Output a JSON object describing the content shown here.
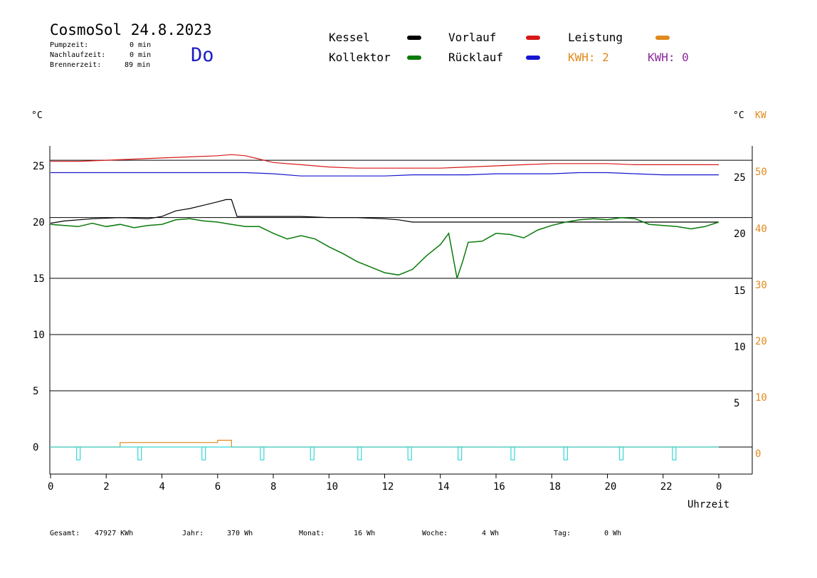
{
  "header": {
    "title": "CosmoSol 24.8.2023",
    "day": "Do",
    "stats": [
      {
        "label": "Pumpzeit:",
        "value": "0 min"
      },
      {
        "label": "Nachlaufzeit:",
        "value": "0 min"
      },
      {
        "label": "Brennerzeit:",
        "value": "89 min"
      }
    ]
  },
  "legend": {
    "kessel": "Kessel",
    "kollektor": "Kollektor",
    "vorlauf": "Vorlauf",
    "ruecklauf": "Rücklauf",
    "leistung": "Leistung",
    "kwh1": "KWH: 2",
    "kwh2": "KWH: 0"
  },
  "colors": {
    "kessel": "#000000",
    "kollektor": "#0a7a0a",
    "vorlauf": "#d81818",
    "ruecklauf": "#1616d0",
    "leistung": "#e08a1e",
    "pump": "#38d6d6",
    "kwh_purple": "#8b2a9a"
  },
  "axes": {
    "left_unit": "°C",
    "right_unit": "°C",
    "right_unit2": "KW",
    "xlabel": "Uhrzeit"
  },
  "footer": {
    "gesamt_label": "Gesamt:",
    "gesamt_value": "47927 KWh",
    "jahr_label": "Jahr:",
    "jahr_value": "370 Wh",
    "monat_label": "Monat:",
    "monat_value": "16 Wh",
    "woche_label": "Woche:",
    "woche_value": "4 Wh",
    "tag_label": "Tag:",
    "tag_value": "0 Wh"
  },
  "chart_data": {
    "type": "line",
    "title": "CosmoSol 24.8.2023",
    "xlabel": "Uhrzeit",
    "ylabel": "°C",
    "x_ticks": [
      "0",
      "2",
      "4",
      "6",
      "8",
      "10",
      "12",
      "14",
      "16",
      "18",
      "20",
      "22",
      "0"
    ],
    "xlim": [
      0,
      24
    ],
    "ylim": [
      -2.5,
      27.5
    ],
    "y_ticks_left": [
      25,
      20,
      15,
      10,
      5,
      0
    ],
    "y_ticks_right_temp": [
      25,
      20,
      15,
      10,
      5
    ],
    "y_ticks_right_kw": [
      50,
      40,
      30,
      20,
      10,
      0
    ],
    "grid": true,
    "series": [
      {
        "name": "Vorlauf",
        "color": "#d81818",
        "x": [
          0,
          1,
          2,
          3,
          4,
          5,
          6,
          6.5,
          7,
          7.5,
          8,
          9,
          10,
          11,
          12,
          13,
          14,
          15,
          16,
          17,
          18,
          19,
          20,
          21,
          22,
          23,
          24
        ],
        "y": [
          25.4,
          25.4,
          25.5,
          25.6,
          25.7,
          25.8,
          25.9,
          26.0,
          25.9,
          25.6,
          25.3,
          25.1,
          24.9,
          24.8,
          24.8,
          24.8,
          24.8,
          24.9,
          25.0,
          25.1,
          25.2,
          25.2,
          25.2,
          25.1,
          25.1,
          25.1,
          25.1
        ]
      },
      {
        "name": "Rücklauf",
        "color": "#1616d0",
        "x": [
          0,
          2,
          4,
          6,
          7,
          8,
          9,
          10,
          11,
          12,
          13,
          14,
          15,
          16,
          17,
          18,
          19,
          20,
          21,
          22,
          23,
          24
        ],
        "y": [
          24.4,
          24.4,
          24.4,
          24.4,
          24.4,
          24.3,
          24.1,
          24.1,
          24.1,
          24.1,
          24.2,
          24.2,
          24.2,
          24.3,
          24.3,
          24.3,
          24.4,
          24.4,
          24.3,
          24.2,
          24.2,
          24.2
        ]
      },
      {
        "name": "Kessel",
        "color": "#000000",
        "x": [
          0,
          0.5,
          1.5,
          2.5,
          3.5,
          4.0,
          4.5,
          5.0,
          5.5,
          6.0,
          6.3,
          6.5,
          6.7,
          7.5,
          8,
          9,
          10,
          11,
          12,
          12.5,
          13,
          14,
          16,
          18,
          20,
          22,
          24
        ],
        "y": [
          19.9,
          20.1,
          20.3,
          20.4,
          20.3,
          20.5,
          21.0,
          21.2,
          21.5,
          21.8,
          22.0,
          22.0,
          20.5,
          20.5,
          20.5,
          20.5,
          20.4,
          20.4,
          20.3,
          20.2,
          20.0,
          20.0,
          20.0,
          20.0,
          20.0,
          20.0,
          20.0
        ]
      },
      {
        "name": "Kollektor",
        "color": "#0a7a0a",
        "x": [
          0,
          0.5,
          1,
          1.5,
          2,
          2.5,
          3,
          3.5,
          4,
          4.5,
          5,
          5.5,
          6,
          6.5,
          7,
          7.5,
          8,
          8.5,
          9,
          9.5,
          10,
          10.5,
          11,
          11.5,
          12,
          12.5,
          13,
          13.5,
          14,
          14.3,
          14.6,
          14.8,
          15,
          15.5,
          16,
          16.5,
          17,
          17.5,
          18,
          18.5,
          19,
          19.5,
          20,
          20.5,
          21,
          21.5,
          22,
          22.5,
          23,
          23.5,
          24
        ],
        "y": [
          19.8,
          19.7,
          19.6,
          19.9,
          19.6,
          19.8,
          19.5,
          19.7,
          19.8,
          20.2,
          20.3,
          20.1,
          20.0,
          19.8,
          19.6,
          19.6,
          19.0,
          18.5,
          18.8,
          18.5,
          17.8,
          17.2,
          16.5,
          16.0,
          15.5,
          15.3,
          15.8,
          17.0,
          18.0,
          19.0,
          15.0,
          16.5,
          18.2,
          18.3,
          19.0,
          18.9,
          18.6,
          19.3,
          19.7,
          20.0,
          20.2,
          20.3,
          20.2,
          20.4,
          20.3,
          19.8,
          19.7,
          19.6,
          19.4,
          19.6,
          20.0
        ]
      },
      {
        "name": "Leistung",
        "color": "#e08a1e",
        "x": [
          0,
          2.5,
          2.5,
          6.0,
          6.0,
          6.5,
          6.5,
          24
        ],
        "y": [
          0,
          0,
          0.4,
          0.4,
          0.6,
          0.6,
          0,
          0
        ]
      }
    ],
    "pump_markers_hours": [
      1.0,
      3.2,
      5.5,
      7.6,
      9.4,
      11.1,
      12.9,
      14.7,
      16.6,
      18.5,
      20.5,
      22.4
    ],
    "reference_lines": [
      {
        "y": 25.5,
        "color": "#000000"
      },
      {
        "y": 20.4,
        "color": "#000000"
      }
    ]
  }
}
